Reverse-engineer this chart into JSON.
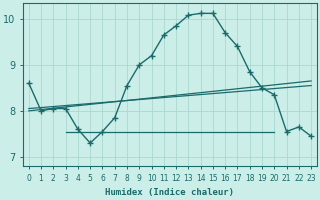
{
  "xlabel": "Humidex (Indice chaleur)",
  "bg_color": "#cceee8",
  "line_color": "#1a6b6b",
  "grid_color": "#aad8d0",
  "xlim": [
    -0.5,
    23.5
  ],
  "ylim": [
    6.8,
    10.35
  ],
  "yticks": [
    7,
    8,
    9,
    10
  ],
  "xticks": [
    0,
    1,
    2,
    3,
    4,
    5,
    6,
    7,
    8,
    9,
    10,
    11,
    12,
    13,
    14,
    15,
    16,
    17,
    18,
    19,
    20,
    21,
    22,
    23
  ],
  "line1_x": [
    0,
    1,
    2,
    3,
    4,
    5,
    6,
    7,
    8,
    9,
    10,
    11,
    12,
    13,
    14,
    15,
    16,
    17,
    18,
    19,
    20,
    21,
    22,
    23
  ],
  "line1_y": [
    8.6,
    8.0,
    8.05,
    8.05,
    7.6,
    7.3,
    7.55,
    7.85,
    8.55,
    9.0,
    9.2,
    9.65,
    9.85,
    10.08,
    10.12,
    10.12,
    9.7,
    9.4,
    8.85,
    8.5,
    8.35,
    7.55,
    7.65,
    7.45
  ],
  "line2_x": [
    3,
    20
  ],
  "line2_y": [
    7.55,
    7.55
  ],
  "line3_x": [
    0,
    23
  ],
  "line3_y": [
    8.0,
    8.65
  ],
  "line4_x": [
    0,
    23
  ],
  "line4_y": [
    8.05,
    8.55
  ]
}
